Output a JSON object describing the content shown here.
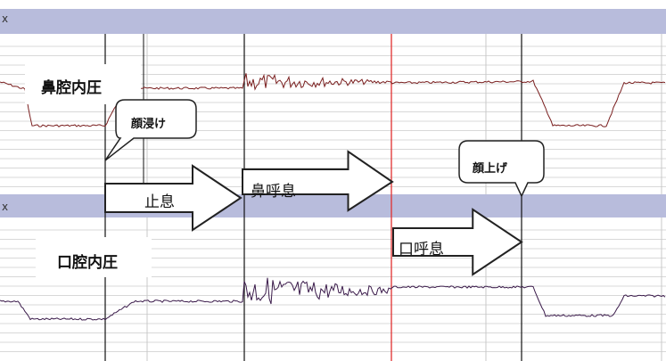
{
  "channels": {
    "top": {
      "label": "鼻腔内圧",
      "marker": "x"
    },
    "bottom": {
      "label": "口腔内圧",
      "marker": "x"
    }
  },
  "callouts": {
    "face_in": "顔浸け",
    "face_up": "顔上げ"
  },
  "arrows": {
    "breath_hold": "止息",
    "nasal_breath": "鼻呼息",
    "oral_breath": "口呼息"
  },
  "colors": {
    "band": "#b8bcdc",
    "nasal_trace": "#7a1f1f",
    "oral_trace": "#3a1a4a",
    "red_cursor": "#e03030",
    "grid_line": "#d8d8d8"
  }
}
